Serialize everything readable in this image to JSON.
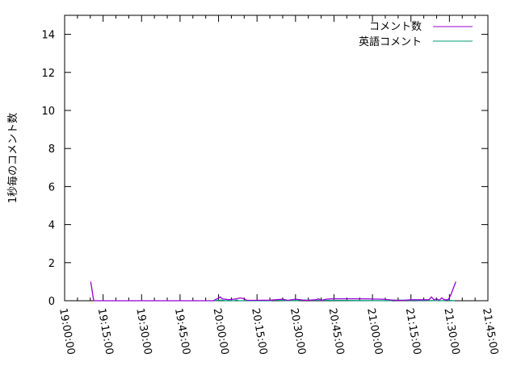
{
  "chart_data": {
    "type": "line",
    "title": "",
    "xlabel": "",
    "ylabel": "1秒毎のコメント数",
    "xlim": [
      "19:00:00",
      "21:45:00"
    ],
    "ylim": [
      0,
      15
    ],
    "xticks": [
      "19:00:00",
      "19:15:00",
      "19:30:00",
      "19:45:00",
      "20:00:00",
      "20:15:00",
      "20:30:00",
      "20:45:00",
      "21:00:00",
      "21:15:00",
      "21:30:00",
      "21:45:00"
    ],
    "yticks": [
      "0",
      "2",
      "4",
      "6",
      "8",
      "10",
      "12",
      "14"
    ],
    "grid": false,
    "legend": "top-right",
    "series": [
      {
        "name": "コメント数",
        "color": "#9400d3",
        "x": [
          "19:10:10",
          "19:11:20",
          "19:58:00",
          "19:59:30",
          "20:00:40",
          "20:01:30",
          "20:04:00",
          "20:07:00",
          "20:08:30",
          "20:10:00",
          "20:11:00",
          "20:14:00",
          "20:20:00",
          "20:25:00",
          "20:27:00",
          "20:30:00",
          "20:34:00",
          "20:38:00",
          "20:39:00",
          "20:40:00",
          "20:42:00",
          "20:44:00",
          "20:45:00",
          "20:50:00",
          "20:56:00",
          "21:04:00",
          "21:09:00",
          "21:12:00",
          "21:15:00",
          "21:22:00",
          "21:23:00",
          "21:24:00",
          "21:25:00",
          "21:26:00",
          "21:27:00",
          "21:28:00",
          "21:29:30",
          "21:30:30",
          "21:32:30"
        ],
        "y": [
          1,
          0,
          0,
          0.1,
          0.2,
          0.1,
          0.05,
          0.1,
          0.15,
          0.1,
          0.02,
          0.02,
          0.03,
          0.08,
          0.02,
          0.08,
          0.02,
          0.05,
          0.1,
          0.02,
          0.08,
          0.1,
          0.1,
          0.1,
          0.1,
          0.08,
          0.02,
          0.02,
          0.05,
          0.05,
          0.2,
          0.05,
          0.1,
          0.02,
          0.15,
          0.05,
          0.05,
          0.3,
          1
        ]
      },
      {
        "name": "英語コメント",
        "color": "#009e73",
        "x": [
          "19:58:00",
          "20:01:00",
          "20:03:00",
          "20:06:00",
          "20:07:00",
          "20:08:00",
          "20:20:00",
          "20:21:00",
          "20:30:00",
          "20:32:00",
          "21:07:00",
          "21:08:00",
          "21:28:00",
          "21:29:00",
          "21:32:00"
        ],
        "y": [
          0,
          0.03,
          0,
          0,
          0.03,
          0,
          0,
          0.03,
          0,
          0.03,
          0,
          0.03,
          0,
          0.03,
          0
        ]
      }
    ]
  }
}
